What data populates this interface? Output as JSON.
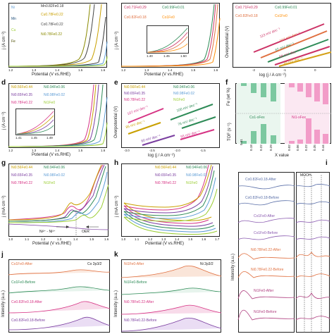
{
  "panels": {
    "a": {
      "label": "a",
      "ylabel": "j (A cm⁻²)",
      "xlabel": "Potential (V vs.RHE)",
      "xticks": [
        "1.2",
        "1.3",
        "1.4",
        "1.5",
        "1.6"
      ],
      "legend": [
        {
          "text": "Ni",
          "color": "#5b9bd5"
        },
        {
          "text": "Mn",
          "color": "#1f4e79"
        },
        {
          "text": "Cu",
          "color": "#9acd32"
        },
        {
          "text": "Fe",
          "color": "#4d4d00"
        },
        {
          "text": "Mn0.82Fe0.18",
          "color": "#333333"
        },
        {
          "text": "Cu0.78Fe0.22",
          "color": "#c9a000"
        },
        {
          "text": "Co0.78Fe0.22",
          "color": "#444444"
        },
        {
          "text": "Ni0.78Fe0.22",
          "color": "#8a8a00"
        }
      ]
    },
    "b": {
      "label": "b",
      "ylabel": "j (A cm⁻²)",
      "xlabel": "Potential (V vs.RHE)",
      "xticks": [
        "1.2",
        "1.3",
        "1.4",
        "1.5",
        "1.6"
      ],
      "legend": [
        {
          "text": "Co0.71Fe0.29",
          "color": "#cc3366"
        },
        {
          "text": "Co0.99Fe0.01",
          "color": "#2e8b57"
        },
        {
          "text": "Co0.82Fe0.18",
          "color": "#e07040"
        },
        {
          "text": "Co1Fe0",
          "color": "#ff8c00"
        }
      ],
      "inset_xticks": [
        "1.40",
        "1.45",
        "1.50"
      ]
    },
    "c": {
      "label": "c",
      "ylabel": "Overpotential (V)",
      "xlabel": "log (j / A cm⁻²)",
      "xticks": [
        "-2",
        "-1",
        "0"
      ],
      "legend": [
        {
          "text": "Co0.71Fe0.29",
          "color": "#cc3366"
        },
        {
          "text": "Co0.99Fe0.01",
          "color": "#2e8b57"
        },
        {
          "text": "Co0.82Fe0.18",
          "color": "#e07040"
        },
        {
          "text": "Co1Fe0",
          "color": "#ff8c00"
        }
      ],
      "slopes": [
        {
          "text": "113 mV dec⁻¹",
          "color": "#cc3366"
        },
        {
          "text": "107 mV dec⁻¹",
          "color": "#e07040"
        },
        {
          "text": "67 mV dec⁻¹",
          "color": "#2e8b57"
        },
        {
          "text": "58 mV dec⁻¹",
          "color": "#cc3366"
        },
        {
          "text": "49 mV dec⁻¹",
          "color": "#d4a017"
        }
      ]
    },
    "d": {
      "label": "d",
      "ylabel": "j (A cm⁻²)",
      "xlabel": "Potential (V vs.RHE)",
      "xticks": [
        "1.2",
        "1.3",
        "1.4",
        "1.5",
        "1.6"
      ],
      "legend": [
        {
          "text": "Ni0.56Fe0.44",
          "color": "#c9a000"
        },
        {
          "text": "Ni0.94Fe0.06",
          "color": "#2e8b57"
        },
        {
          "text": "Ni0.65Fe0.35",
          "color": "#7b3fa0"
        },
        {
          "text": "Ni0.98Fe0.02",
          "color": "#5b9bd5"
        },
        {
          "text": "Ni0.78Fe0.22",
          "color": "#d63384"
        },
        {
          "text": "Ni1Fe0",
          "color": "#9acd32"
        }
      ],
      "inset_xticks": [
        "1.41",
        "1.45",
        "1.49"
      ]
    },
    "e": {
      "label": "e",
      "ylabel": "Overpotential (V)",
      "xlabel": "log (j / A cm⁻²)",
      "xticks": [
        "-3.0",
        "-2.5",
        "-2.0",
        "-1.5"
      ],
      "legend": [
        {
          "text": "Ni0.56Fe0.44",
          "color": "#c9a000"
        },
        {
          "text": "Ni0.94Fe0.06",
          "color": "#2e8b57"
        },
        {
          "text": "Ni0.65Fe0.35",
          "color": "#7b3fa0"
        },
        {
          "text": "Ni0.98Fe0.02",
          "color": "#5b9bd5"
        },
        {
          "text": "Ni0.78Fe0.22",
          "color": "#d63384"
        },
        {
          "text": "Ni1Fe0",
          "color": "#9acd32"
        }
      ],
      "slopes": [
        {
          "text": "107 mV dec⁻¹",
          "color": "#d63384"
        },
        {
          "text": "100 mV dec⁻¹",
          "color": "#2e8b57"
        },
        {
          "text": "85 mV dec⁻¹",
          "color": "#c9a000"
        },
        {
          "text": "60 mV dec⁻¹",
          "color": "#7b3fa0"
        },
        {
          "text": "55 mV dec⁻¹",
          "color": "#d63384"
        },
        {
          "text": "76 mV dec⁻¹",
          "color": "#2e8b57"
        }
      ]
    },
    "f": {
      "label": "f",
      "ylabel_top": "Fe (wt %)",
      "ylabel_bottom": "TOF (s⁻¹)",
      "xlabel": "X value",
      "xticks": [
        "0.01",
        "0.18",
        "0.22",
        "0.29",
        "0.02",
        "0.06",
        "0.22",
        "0.35",
        "0.44"
      ],
      "group_left": "Co1-xFex",
      "group_right": "Ni1-xFex"
    },
    "g": {
      "label": "g",
      "ylabel": "j (mA cm⁻²)",
      "xlabel": "Potential (V vs.RHE)",
      "xticks": [
        "1.0",
        "1.1",
        "1.2",
        "1.3",
        "1.4",
        "1.5",
        "1.6"
      ],
      "legend": [
        {
          "text": "Ni0.56Fe0.44",
          "color": "#c9a000"
        },
        {
          "text": "Ni0.94Fe0.06",
          "color": "#2e8b57"
        },
        {
          "text": "Ni0.65Fe0.35",
          "color": "#7b3fa0"
        },
        {
          "text": "Ni0.98Fe0.02",
          "color": "#5b9bd5"
        },
        {
          "text": "Ni0.78Fe0.22",
          "color": "#d63384"
        },
        {
          "text": "Ni1Fe0",
          "color": "#9acd32"
        }
      ],
      "annotations": [
        "Ni²⁺ - Ni³⁺",
        "OER"
      ]
    },
    "h": {
      "label": "h",
      "ylabel": "j (mA cm⁻²)",
      "xlabel": "Potential (V vs.RHE)",
      "xticks": [
        "1.0",
        "1.1",
        "1.2",
        "1.3",
        "1.4",
        "1.5",
        "1.6",
        "1.7"
      ],
      "legend": [
        {
          "text": "Ni0.56Fe0.44",
          "color": "#c9a000"
        },
        {
          "text": "Ni0.94Fe0.06",
          "color": "#2e8b57"
        },
        {
          "text": "Ni0.65Fe0.35",
          "color": "#7b3fa0"
        },
        {
          "text": "Ni0.98Fe0.02",
          "color": "#5b9bd5"
        },
        {
          "text": "Ni0.78Fe0.22",
          "color": "#d63384"
        },
        {
          "text": "Ni1Fe0",
          "color": "#9acd32"
        }
      ]
    },
    "i": {
      "label": "i",
      "ylabel": "Intensity (a.u.)",
      "mooh_label": "MOOH",
      "traces": [
        {
          "text": "Co0.82Fe0.18-After",
          "color": "#5a6fa8"
        },
        {
          "text": "Co0.82Fe0.18-Before",
          "color": "#5a6fa8"
        },
        {
          "text": "Co1Fe0-After",
          "color": "#8a5ab0"
        },
        {
          "text": "Co1Fe0-Before",
          "color": "#8a5ab0"
        },
        {
          "text": "Ni0.78Fe0.22-After",
          "color": "#e07040"
        },
        {
          "text": "Ni0.78Fe0.22-Before",
          "color": "#e07040"
        },
        {
          "text": "Ni1Fe0-After",
          "color": "#b04080"
        },
        {
          "text": "Ni1Fe0-Before",
          "color": "#b04080"
        }
      ]
    },
    "j": {
      "label": "j",
      "ylabel": "Intensity (a.u.)",
      "edge": "Co 2p3/2",
      "traces": [
        {
          "text": "Co1Fe0-After",
          "color": "#e07040"
        },
        {
          "text": "Co1Fe0-Before",
          "color": "#2e8b57"
        },
        {
          "text": "Co0.82Fe0.18-After",
          "color": "#d63384"
        },
        {
          "text": "Co0.82Fe0.18-Before",
          "color": "#7b3fa0"
        }
      ]
    },
    "k": {
      "label": "k",
      "ylabel": "Intensity (a.u.)",
      "edge": "Ni 2p3/2",
      "traces": [
        {
          "text": "Ni1Fe0-After",
          "color": "#e07040"
        },
        {
          "text": "Ni1Fe0-Before",
          "color": "#2e8b57"
        },
        {
          "text": "Ni0.78Fe0.22-After",
          "color": "#d63384"
        },
        {
          "text": "Ni0.78Fe0.22-Before",
          "color": "#7b3fa0"
        }
      ]
    }
  }
}
